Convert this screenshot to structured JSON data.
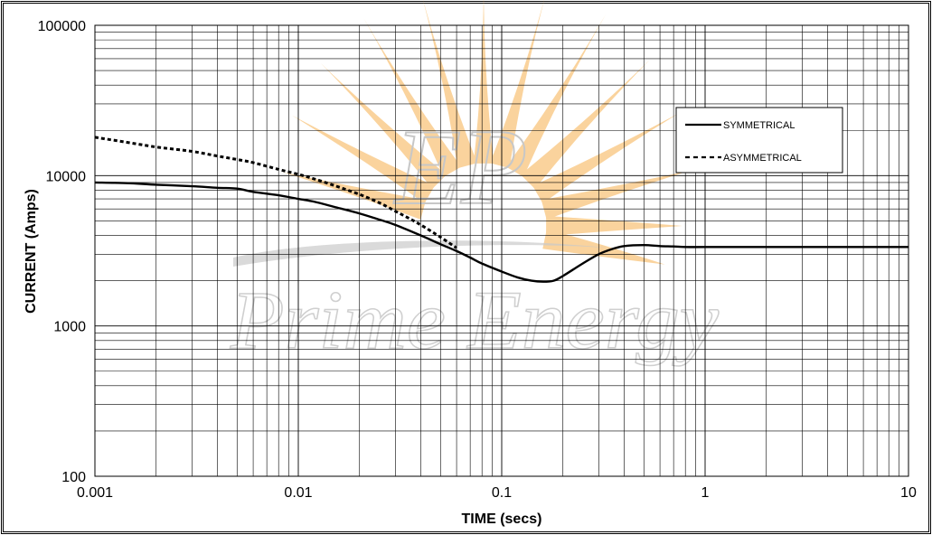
{
  "chart_data": {
    "type": "line",
    "xlabel": "TIME (secs)",
    "ylabel": "CURRENT (Amps)",
    "x_scale": "log",
    "y_scale": "log",
    "xlim": [
      0.001,
      10
    ],
    "ylim": [
      100,
      100000
    ],
    "x_ticks": [
      "0.001",
      "0.01",
      "0.1",
      "1",
      "10"
    ],
    "y_ticks": [
      "100",
      "1000",
      "10000",
      "100000"
    ],
    "grid": true,
    "legend_position": "right",
    "series": [
      {
        "name": "SYMMETRICAL",
        "style": "solid",
        "color": "#000000",
        "x": [
          0.001,
          0.0015,
          0.002,
          0.003,
          0.004,
          0.005,
          0.006,
          0.008,
          0.01,
          0.012,
          0.015,
          0.02,
          0.025,
          0.03,
          0.04,
          0.05,
          0.06,
          0.07,
          0.08,
          0.1,
          0.12,
          0.14,
          0.16,
          0.18,
          0.2,
          0.25,
          0.3,
          0.35,
          0.4,
          0.5,
          0.6,
          0.7,
          0.8,
          1,
          2,
          5,
          10
        ],
        "y": [
          9000,
          8900,
          8700,
          8500,
          8300,
          8200,
          7800,
          7400,
          7000,
          6700,
          6200,
          5600,
          5100,
          4700,
          4000,
          3500,
          3150,
          2850,
          2600,
          2300,
          2100,
          2000,
          1970,
          2000,
          2150,
          2600,
          3000,
          3250,
          3400,
          3450,
          3400,
          3380,
          3350,
          3350,
          3350,
          3350,
          3350
        ]
      },
      {
        "name": "ASYMMETRICAL",
        "style": "dashed",
        "color": "#000000",
        "x": [
          0.001,
          0.0015,
          0.002,
          0.003,
          0.004,
          0.005,
          0.006,
          0.008,
          0.01,
          0.012,
          0.015,
          0.02,
          0.025,
          0.03,
          0.035,
          0.04,
          0.05,
          0.06
        ],
        "y": [
          18000,
          16500,
          15500,
          14500,
          13500,
          12800,
          12200,
          11000,
          10200,
          9500,
          8600,
          7500,
          6600,
          5800,
          5200,
          4700,
          3900,
          3300
        ]
      }
    ]
  },
  "watermark": {
    "monogram": "EP",
    "brand": "Prime Energy",
    "sun_color": "#f6b04e"
  }
}
